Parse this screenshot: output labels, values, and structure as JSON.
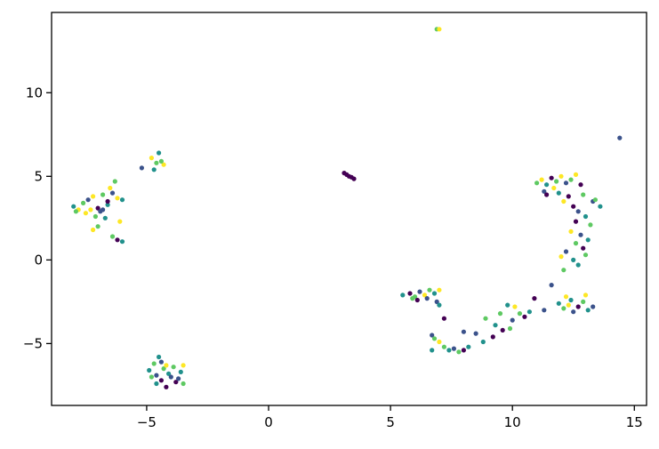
{
  "chart_data": {
    "type": "scatter",
    "title": "",
    "xlabel": "",
    "ylabel": "",
    "xlim": [
      -8.9,
      15.5
    ],
    "ylim": [
      -8.7,
      14.8
    ],
    "grid": false,
    "legend": "none",
    "x_ticks": [
      -5,
      0,
      5,
      10,
      15
    ],
    "y_ticks": [
      -5,
      0,
      5,
      10
    ],
    "x_tick_labels": [
      "−5",
      "0",
      "5",
      "10",
      "15"
    ],
    "y_tick_labels": [
      "−5",
      "0",
      "5",
      "10"
    ],
    "palette": [
      "#440154",
      "#3b528b",
      "#21918c",
      "#5ec962",
      "#fde725"
    ],
    "points": [
      {
        "x": -8.0,
        "y": 3.2,
        "c": 2
      },
      {
        "x": -7.8,
        "y": 3.0,
        "c": 4
      },
      {
        "x": -7.6,
        "y": 3.4,
        "c": 3
      },
      {
        "x": -7.4,
        "y": 3.6,
        "c": 1
      },
      {
        "x": -7.2,
        "y": 3.8,
        "c": 4
      },
      {
        "x": -7.0,
        "y": 3.1,
        "c": 0
      },
      {
        "x": -6.8,
        "y": 3.9,
        "c": 3
      },
      {
        "x": -6.6,
        "y": 3.3,
        "c": 2
      },
      {
        "x": -6.4,
        "y": 4.0,
        "c": 1
      },
      {
        "x": -6.2,
        "y": 3.7,
        "c": 4
      },
      {
        "x": -6.0,
        "y": 3.6,
        "c": 2
      },
      {
        "x": -7.5,
        "y": 2.8,
        "c": 4
      },
      {
        "x": -7.1,
        "y": 2.6,
        "c": 3
      },
      {
        "x": -6.9,
        "y": 2.9,
        "c": 1
      },
      {
        "x": -6.7,
        "y": 2.5,
        "c": 2
      },
      {
        "x": -7.9,
        "y": 2.9,
        "c": 3
      },
      {
        "x": -7.3,
        "y": 3.0,
        "c": 4
      },
      {
        "x": -6.5,
        "y": 4.3,
        "c": 4
      },
      {
        "x": -6.3,
        "y": 4.7,
        "c": 3
      },
      {
        "x": -6.1,
        "y": 2.3,
        "c": 4
      },
      {
        "x": -6.2,
        "y": 1.2,
        "c": 0
      },
      {
        "x": -6.0,
        "y": 1.1,
        "c": 2
      },
      {
        "x": -6.4,
        "y": 1.4,
        "c": 3
      },
      {
        "x": -7.0,
        "y": 2.0,
        "c": 3
      },
      {
        "x": -7.2,
        "y": 1.8,
        "c": 4
      },
      {
        "x": -6.6,
        "y": 3.5,
        "c": 0
      },
      {
        "x": -6.8,
        "y": 3.0,
        "c": 1
      },
      {
        "x": -5.2,
        "y": 5.5,
        "c": 1
      },
      {
        "x": -4.8,
        "y": 6.1,
        "c": 4
      },
      {
        "x": -4.6,
        "y": 5.8,
        "c": 3
      },
      {
        "x": -4.5,
        "y": 6.4,
        "c": 2
      },
      {
        "x": -4.3,
        "y": 5.7,
        "c": 4
      },
      {
        "x": -4.7,
        "y": 5.4,
        "c": 2
      },
      {
        "x": -4.4,
        "y": 5.9,
        "c": 3
      },
      {
        "x": -4.9,
        "y": -6.6,
        "c": 2
      },
      {
        "x": -4.7,
        "y": -6.2,
        "c": 3
      },
      {
        "x": -4.6,
        "y": -6.9,
        "c": 1
      },
      {
        "x": -4.5,
        "y": -5.8,
        "c": 2
      },
      {
        "x": -4.4,
        "y": -7.2,
        "c": 0
      },
      {
        "x": -4.3,
        "y": -6.5,
        "c": 3
      },
      {
        "x": -4.2,
        "y": -7.6,
        "c": 0
      },
      {
        "x": -4.1,
        "y": -6.8,
        "c": 2
      },
      {
        "x": -4.0,
        "y": -7.0,
        "c": 1
      },
      {
        "x": -3.9,
        "y": -6.4,
        "c": 3
      },
      {
        "x": -3.8,
        "y": -7.3,
        "c": 0
      },
      {
        "x": -3.6,
        "y": -6.7,
        "c": 2
      },
      {
        "x": -3.5,
        "y": -7.4,
        "c": 3
      },
      {
        "x": -3.5,
        "y": -6.3,
        "c": 4
      },
      {
        "x": -4.8,
        "y": -7.0,
        "c": 3
      },
      {
        "x": -4.4,
        "y": -6.1,
        "c": 1
      },
      {
        "x": -4.2,
        "y": -6.3,
        "c": 4
      },
      {
        "x": -4.6,
        "y": -7.4,
        "c": 2
      },
      {
        "x": -3.7,
        "y": -7.1,
        "c": 1
      },
      {
        "x": 3.1,
        "y": 5.2,
        "c": 0
      },
      {
        "x": 3.2,
        "y": 5.1,
        "c": 0
      },
      {
        "x": 3.3,
        "y": 5.0,
        "c": 0
      },
      {
        "x": 3.4,
        "y": 4.95,
        "c": 0
      },
      {
        "x": 3.5,
        "y": 4.85,
        "c": 0
      },
      {
        "x": 6.9,
        "y": 13.8,
        "c": 3
      },
      {
        "x": 7.0,
        "y": 13.8,
        "c": 4
      },
      {
        "x": 14.4,
        "y": 7.3,
        "c": 1
      },
      {
        "x": 5.5,
        "y": -2.1,
        "c": 2
      },
      {
        "x": 5.8,
        "y": -2.0,
        "c": 0
      },
      {
        "x": 6.0,
        "y": -2.2,
        "c": 3
      },
      {
        "x": 6.2,
        "y": -1.9,
        "c": 1
      },
      {
        "x": 6.4,
        "y": -2.1,
        "c": 4
      },
      {
        "x": 6.6,
        "y": -1.8,
        "c": 3
      },
      {
        "x": 6.8,
        "y": -2.0,
        "c": 2
      },
      {
        "x": 7.0,
        "y": -1.8,
        "c": 4
      },
      {
        "x": 6.9,
        "y": -2.5,
        "c": 1
      },
      {
        "x": 7.0,
        "y": -2.7,
        "c": 2
      },
      {
        "x": 6.1,
        "y": -2.4,
        "c": 0
      },
      {
        "x": 5.9,
        "y": -2.3,
        "c": 3
      },
      {
        "x": 6.5,
        "y": -2.3,
        "c": 1
      },
      {
        "x": 7.2,
        "y": -3.5,
        "c": 0
      },
      {
        "x": 6.7,
        "y": -4.5,
        "c": 1
      },
      {
        "x": 6.8,
        "y": -4.7,
        "c": 3
      },
      {
        "x": 6.7,
        "y": -5.4,
        "c": 2
      },
      {
        "x": 7.0,
        "y": -4.9,
        "c": 4
      },
      {
        "x": 7.2,
        "y": -5.2,
        "c": 3
      },
      {
        "x": 7.4,
        "y": -5.4,
        "c": 2
      },
      {
        "x": 7.6,
        "y": -5.3,
        "c": 1
      },
      {
        "x": 7.8,
        "y": -5.5,
        "c": 3
      },
      {
        "x": 8.0,
        "y": -5.4,
        "c": 0
      },
      {
        "x": 8.2,
        "y": -5.2,
        "c": 2
      },
      {
        "x": 8.0,
        "y": -4.3,
        "c": 1
      },
      {
        "x": 8.5,
        "y": -4.4,
        "c": 1
      },
      {
        "x": 8.8,
        "y": -4.9,
        "c": 2
      },
      {
        "x": 8.9,
        "y": -3.5,
        "c": 3
      },
      {
        "x": 9.2,
        "y": -4.6,
        "c": 0
      },
      {
        "x": 9.3,
        "y": -3.9,
        "c": 2
      },
      {
        "x": 9.5,
        "y": -3.2,
        "c": 3
      },
      {
        "x": 9.6,
        "y": -4.2,
        "c": 0
      },
      {
        "x": 9.8,
        "y": -2.7,
        "c": 2
      },
      {
        "x": 10.0,
        "y": -3.6,
        "c": 1
      },
      {
        "x": 10.1,
        "y": -2.8,
        "c": 4
      },
      {
        "x": 10.3,
        "y": -3.2,
        "c": 3
      },
      {
        "x": 10.5,
        "y": -3.4,
        "c": 0
      },
      {
        "x": 10.7,
        "y": -3.1,
        "c": 2
      },
      {
        "x": 10.9,
        "y": -2.3,
        "c": 0
      },
      {
        "x": 9.9,
        "y": -4.1,
        "c": 3
      },
      {
        "x": 11.0,
        "y": 4.6,
        "c": 3
      },
      {
        "x": 11.2,
        "y": 4.8,
        "c": 4
      },
      {
        "x": 11.4,
        "y": 4.5,
        "c": 2
      },
      {
        "x": 11.6,
        "y": 4.9,
        "c": 0
      },
      {
        "x": 11.8,
        "y": 4.7,
        "c": 3
      },
      {
        "x": 12.0,
        "y": 5.0,
        "c": 4
      },
      {
        "x": 12.2,
        "y": 4.6,
        "c": 1
      },
      {
        "x": 12.4,
        "y": 4.8,
        "c": 3
      },
      {
        "x": 12.6,
        "y": 5.1,
        "c": 4
      },
      {
        "x": 12.8,
        "y": 4.5,
        "c": 0
      },
      {
        "x": 11.3,
        "y": 4.1,
        "c": 1
      },
      {
        "x": 11.9,
        "y": 4.0,
        "c": 2
      },
      {
        "x": 12.3,
        "y": 3.8,
        "c": 0
      },
      {
        "x": 12.9,
        "y": 3.9,
        "c": 3
      },
      {
        "x": 13.3,
        "y": 3.5,
        "c": 1
      },
      {
        "x": 13.6,
        "y": 3.2,
        "c": 2
      },
      {
        "x": 13.4,
        "y": 3.6,
        "c": 3
      },
      {
        "x": 12.5,
        "y": 3.2,
        "c": 0
      },
      {
        "x": 12.1,
        "y": 3.5,
        "c": 4
      },
      {
        "x": 12.7,
        "y": 2.9,
        "c": 1
      },
      {
        "x": 13.0,
        "y": 2.6,
        "c": 2
      },
      {
        "x": 12.6,
        "y": 2.3,
        "c": 0
      },
      {
        "x": 13.2,
        "y": 2.1,
        "c": 3
      },
      {
        "x": 12.4,
        "y": 1.7,
        "c": 4
      },
      {
        "x": 12.8,
        "y": 1.5,
        "c": 1
      },
      {
        "x": 13.1,
        "y": 1.2,
        "c": 2
      },
      {
        "x": 12.6,
        "y": 1.0,
        "c": 3
      },
      {
        "x": 12.9,
        "y": 0.7,
        "c": 0
      },
      {
        "x": 12.2,
        "y": 0.5,
        "c": 1
      },
      {
        "x": 12.0,
        "y": 0.2,
        "c": 4
      },
      {
        "x": 12.5,
        "y": 0.0,
        "c": 2
      },
      {
        "x": 13.0,
        "y": 0.3,
        "c": 3
      },
      {
        "x": 12.7,
        "y": -0.3,
        "c": 2
      },
      {
        "x": 12.1,
        "y": -0.6,
        "c": 3
      },
      {
        "x": 11.4,
        "y": 3.9,
        "c": 0
      },
      {
        "x": 11.7,
        "y": 4.3,
        "c": 4
      },
      {
        "x": 11.9,
        "y": -2.6,
        "c": 2
      },
      {
        "x": 12.1,
        "y": -2.9,
        "c": 3
      },
      {
        "x": 12.3,
        "y": -2.7,
        "c": 4
      },
      {
        "x": 12.5,
        "y": -3.1,
        "c": 1
      },
      {
        "x": 12.7,
        "y": -2.8,
        "c": 0
      },
      {
        "x": 12.9,
        "y": -2.5,
        "c": 3
      },
      {
        "x": 13.1,
        "y": -3.0,
        "c": 2
      },
      {
        "x": 13.3,
        "y": -2.8,
        "c": 1
      },
      {
        "x": 13.0,
        "y": -2.1,
        "c": 4
      },
      {
        "x": 12.2,
        "y": -2.2,
        "c": 4
      },
      {
        "x": 11.6,
        "y": -1.5,
        "c": 1
      },
      {
        "x": 11.3,
        "y": -3.0,
        "c": 1
      },
      {
        "x": 12.4,
        "y": -2.4,
        "c": 2
      }
    ]
  }
}
